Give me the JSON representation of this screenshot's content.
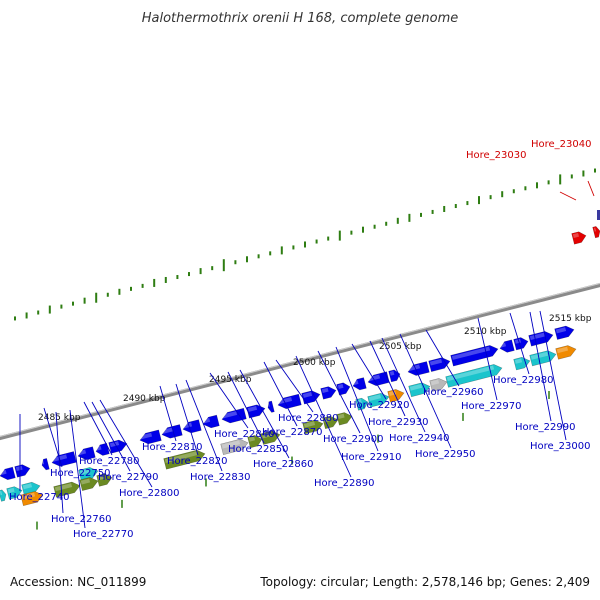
{
  "title": "Halothermothrix orenii H 168, complete genome",
  "footer": {
    "accession": "Accession: NC_011899",
    "summary": "Topology: circular; Length: 2,578,146 bp; Genes: 2,409"
  },
  "colors": {
    "cds_blue": "#0000e8",
    "cds_cyan": "#1bc4cc",
    "cds_olive": "#6b8a22",
    "cds_gray": "#b8b8b8",
    "cds_orange": "#f08a00",
    "highlight_red": "#e40000",
    "label_blue": "#0000c0",
    "label_red": "#d00000",
    "tick_green": "#2e7d12",
    "backbone": "#8a8a8a"
  },
  "ticks": [
    "2485 kbp",
    "2490 kbp",
    "2495 kbp",
    "2500 kbp",
    "2505 kbp",
    "2510 kbp",
    "2515 kbp"
  ],
  "gene_labels": [
    {
      "name": "Hore_22740",
      "highlight": false
    },
    {
      "name": "Hore_22750",
      "highlight": false
    },
    {
      "name": "Hore_22760",
      "highlight": false
    },
    {
      "name": "Hore_22770",
      "highlight": false
    },
    {
      "name": "Hore_22780",
      "highlight": false
    },
    {
      "name": "Hore_22790",
      "highlight": false
    },
    {
      "name": "Hore_22800",
      "highlight": false
    },
    {
      "name": "Hore_22810",
      "highlight": false
    },
    {
      "name": "Hore_22820",
      "highlight": false
    },
    {
      "name": "Hore_22830",
      "highlight": false
    },
    {
      "name": "Hore_22840",
      "highlight": false
    },
    {
      "name": "Hore_22850",
      "highlight": false
    },
    {
      "name": "Hore_22860",
      "highlight": false
    },
    {
      "name": "Hore_22870",
      "highlight": false
    },
    {
      "name": "Hore_22880",
      "highlight": false
    },
    {
      "name": "Hore_22890",
      "highlight": false
    },
    {
      "name": "Hore_22900",
      "highlight": false
    },
    {
      "name": "Hore_22910",
      "highlight": false
    },
    {
      "name": "Hore_22920",
      "highlight": false
    },
    {
      "name": "Hore_22930",
      "highlight": false
    },
    {
      "name": "Hore_22940",
      "highlight": false
    },
    {
      "name": "Hore_22950",
      "highlight": false
    },
    {
      "name": "Hore_22960",
      "highlight": false
    },
    {
      "name": "Hore_22970",
      "highlight": false
    },
    {
      "name": "Hore_22980",
      "highlight": false
    },
    {
      "name": "Hore_22990",
      "highlight": false
    },
    {
      "name": "Hore_23000",
      "highlight": false
    },
    {
      "name": "Hore_23030",
      "highlight": true
    },
    {
      "name": "Hore_23040",
      "highlight": true
    }
  ]
}
